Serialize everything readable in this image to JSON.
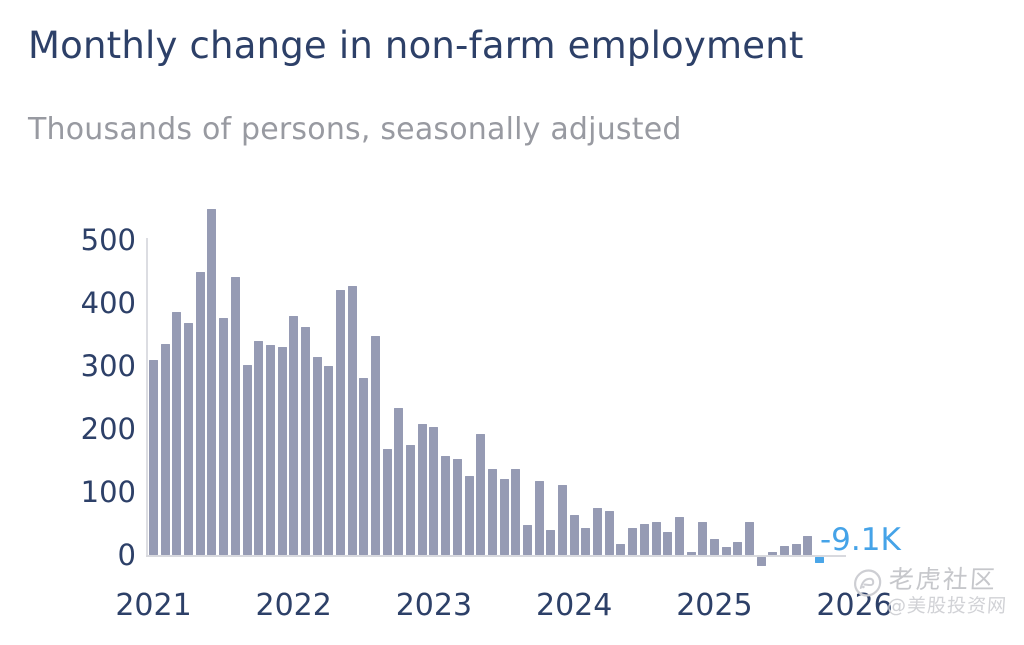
{
  "header": {
    "title": "Monthly change in non-farm employment",
    "subtitle": "Thousands of persons, seasonally adjusted"
  },
  "chart_data": {
    "type": "bar",
    "title": "Monthly change in non-farm employment",
    "subtitle": "Thousands of persons, seasonally adjusted",
    "unit": "thousands of persons",
    "start_month": "2021-01",
    "values": [
      310,
      335,
      385,
      369,
      450,
      550,
      377,
      441,
      302,
      340,
      333,
      331,
      379,
      362,
      315,
      300,
      421,
      427,
      281,
      347,
      169,
      234,
      175,
      208,
      204,
      158,
      153,
      126,
      192,
      136,
      120,
      137,
      47,
      117,
      39,
      111,
      64,
      43,
      74,
      70,
      17,
      43,
      50,
      53,
      37,
      60,
      5,
      52,
      25,
      13,
      20,
      53,
      -15,
      5,
      14,
      17,
      30,
      -9.1
    ],
    "x_axis": {
      "tick_labels": [
        "2021",
        "2022",
        "2023",
        "2024",
        "2025",
        "2026"
      ],
      "months_per_tick": 12
    },
    "y_axis": {
      "tick_labels": [
        "0",
        "100",
        "200",
        "300",
        "400",
        "500"
      ],
      "ticks": [
        0,
        100,
        200,
        300,
        400,
        500
      ],
      "range": [
        -25,
        580
      ]
    },
    "grid": "off",
    "legend": "none",
    "last_point": {
      "label": "-9.1K",
      "value": -9.1,
      "highlighted": true
    },
    "colors": {
      "bar": "#969bb4",
      "highlight": "#4aa6e8",
      "axis_text": "#2d4068",
      "axis_line": "#d8d9de",
      "title_text": "#2d4068",
      "subtitle_text": "#989aa1"
    }
  },
  "watermark": {
    "brand": "老虎社区",
    "handle": "@美股投资网"
  }
}
